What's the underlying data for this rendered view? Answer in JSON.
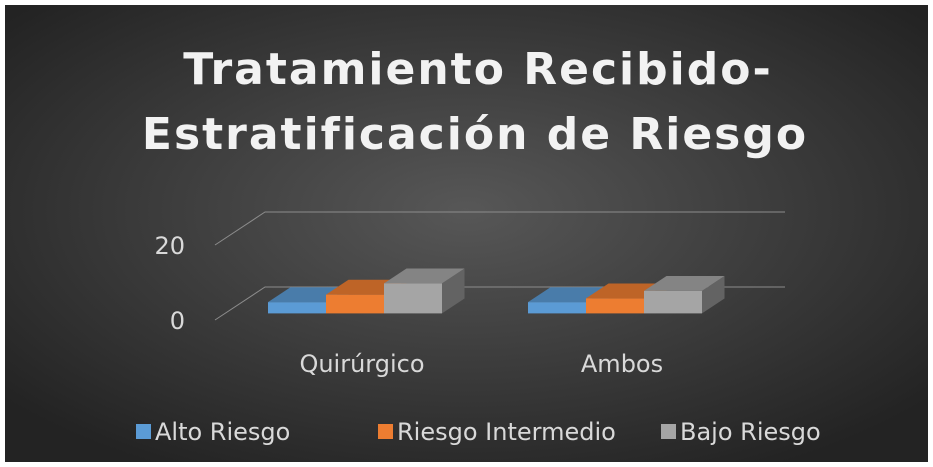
{
  "chart_data": {
    "type": "bar3d",
    "title": [
      "Tratamiento Recibido-",
      "Estratificación de Riesgo"
    ],
    "categories": [
      "Quirúrgico",
      "Ambos"
    ],
    "series": [
      {
        "name": "Alto Riesgo",
        "color": "#5b9bd5",
        "values": [
          3,
          3
        ]
      },
      {
        "name": "Riesgo Intermedio",
        "color": "#ed7d31",
        "values": [
          5,
          4
        ]
      },
      {
        "name": "Bajo Riesgo",
        "color": "#a5a5a5",
        "values": [
          8,
          6
        ]
      }
    ],
    "ylim": [
      0,
      20
    ],
    "yticks": [
      0,
      20
    ],
    "grid": true,
    "legend": "bottom"
  }
}
